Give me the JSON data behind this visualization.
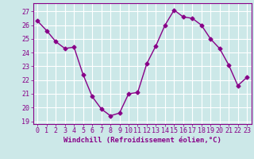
{
  "x": [
    0,
    1,
    2,
    3,
    4,
    5,
    6,
    7,
    8,
    9,
    10,
    11,
    12,
    13,
    14,
    15,
    16,
    17,
    18,
    19,
    20,
    21,
    22,
    23
  ],
  "y": [
    26.3,
    25.6,
    24.8,
    24.3,
    24.4,
    22.4,
    20.8,
    19.9,
    19.4,
    19.6,
    21.0,
    21.1,
    23.2,
    24.5,
    26.0,
    27.1,
    26.6,
    26.5,
    26.0,
    25.0,
    24.3,
    23.1,
    21.6,
    22.2
  ],
  "line_color": "#880088",
  "marker": "D",
  "marker_size": 2.5,
  "bg_color": "#cce8e8",
  "grid_color": "#ffffff",
  "xlabel": "Windchill (Refroidissement éolien,°C)",
  "xlabel_color": "#880088",
  "tick_color": "#880088",
  "spine_color": "#880088",
  "ylim": [
    18.8,
    27.6
  ],
  "xlim": [
    -0.5,
    23.5
  ],
  "yticks": [
    19,
    20,
    21,
    22,
    23,
    24,
    25,
    26,
    27
  ],
  "xticks": [
    0,
    1,
    2,
    3,
    4,
    5,
    6,
    7,
    8,
    9,
    10,
    11,
    12,
    13,
    14,
    15,
    16,
    17,
    18,
    19,
    20,
    21,
    22,
    23
  ],
  "font_family": "monospace",
  "tick_fontsize": 6,
  "xlabel_fontsize": 6.5,
  "linewidth": 1.0
}
